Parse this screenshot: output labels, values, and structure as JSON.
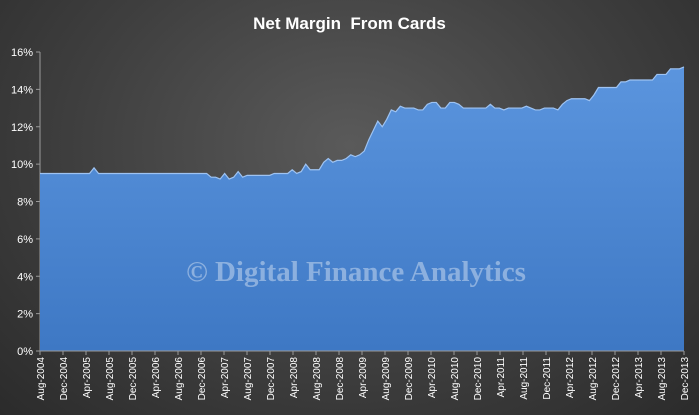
{
  "chart_data": {
    "type": "area",
    "title": "Net Margin  From Cards",
    "xlabel": "",
    "ylabel": "",
    "ylim": [
      0,
      16
    ],
    "yticks": [
      "0%",
      "2%",
      "4%",
      "6%",
      "8%",
      "10%",
      "12%",
      "14%",
      "16%"
    ],
    "yticks_values": [
      0,
      2,
      4,
      6,
      8,
      10,
      12,
      14,
      16
    ],
    "x_tick_labels": [
      "Aug-2004",
      "Dec-2004",
      "Apr-2005",
      "Aug-2005",
      "Dec-2005",
      "Apr-2006",
      "Aug-2006",
      "Dec-2006",
      "Apr-2007",
      "Aug-2007",
      "Dec-2007",
      "Apr-2008",
      "Aug-2008",
      "Dec-2008",
      "Apr-2009",
      "Aug-2009",
      "Dec-2009",
      "Apr-2010",
      "Aug-2010",
      "Dec-2010",
      "Apr-2011",
      "Aug-2011",
      "Dec-2011",
      "Apr-2012",
      "Aug-2012",
      "Dec-2012",
      "Apr-2013",
      "Aug-2013",
      "Dec-2013"
    ],
    "x_start": "Aug-2004",
    "x_end": "Dec-2013",
    "series": [
      {
        "values": [
          9.5,
          9.5,
          9.5,
          9.5,
          9.5,
          9.5,
          9.5,
          9.5,
          9.5,
          9.5,
          9.5,
          9.5,
          9.8,
          9.5,
          9.5,
          9.5,
          9.5,
          9.5,
          9.5,
          9.5,
          9.5,
          9.5,
          9.5,
          9.5,
          9.5,
          9.5,
          9.5,
          9.5,
          9.5,
          9.5,
          9.5,
          9.5,
          9.5,
          9.5,
          9.5,
          9.5,
          9.5,
          9.5,
          9.3,
          9.3,
          9.2,
          9.5,
          9.2,
          9.3,
          9.6,
          9.3,
          9.4,
          9.4,
          9.4,
          9.4,
          9.4,
          9.4,
          9.5,
          9.5,
          9.5,
          9.5,
          9.7,
          9.5,
          9.6,
          10.0,
          9.7,
          9.7,
          9.7,
          10.1,
          10.3,
          10.1,
          10.2,
          10.2,
          10.3,
          10.5,
          10.4,
          10.5,
          10.7,
          11.3,
          11.8,
          12.3,
          12.0,
          12.4,
          12.9,
          12.8,
          13.1,
          13.0,
          13.0,
          13.0,
          12.9,
          12.9,
          13.2,
          13.3,
          13.3,
          13.0,
          13.0,
          13.3,
          13.3,
          13.2,
          13.0,
          13.0,
          13.0,
          13.0,
          13.0,
          13.0,
          13.2,
          13.0,
          13.0,
          12.9,
          13.0,
          13.0,
          13.0,
          13.0,
          13.1,
          13.0,
          12.9,
          12.9,
          13.0,
          13.0,
          13.0,
          12.9,
          13.2,
          13.4,
          13.5,
          13.5,
          13.5,
          13.5,
          13.4,
          13.7,
          14.1,
          14.1,
          14.1,
          14.1,
          14.1,
          14.4,
          14.4,
          14.5,
          14.5,
          14.5,
          14.5,
          14.5,
          14.5,
          14.8,
          14.8,
          14.8,
          15.1,
          15.1,
          15.1,
          15.2
        ]
      }
    ]
  },
  "watermark": "© Digital Finance Analytics",
  "colors": {
    "area_fill_top": "#5b95de",
    "area_fill_bottom": "#3e78c4",
    "area_edge": "#9ec3f2",
    "text": "#ffffff",
    "axis": "#9a9a9a"
  }
}
